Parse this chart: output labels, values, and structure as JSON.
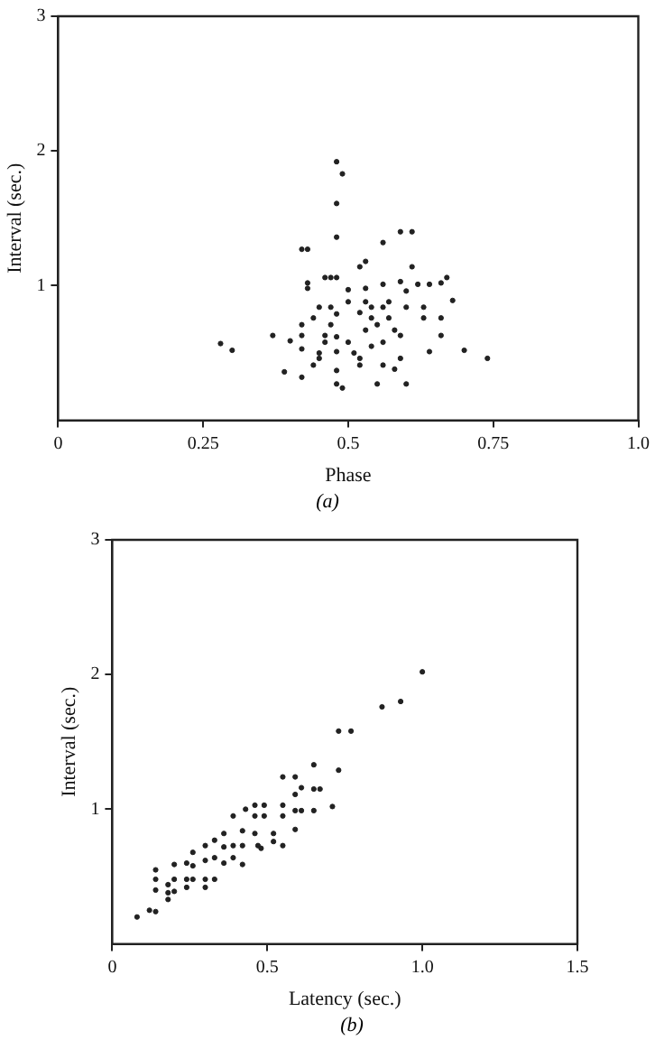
{
  "chart_data": [
    {
      "type": "scatter",
      "xlabel": "Phase",
      "ylabel": "Interval (sec.)",
      "annotations": [
        "(a)"
      ],
      "xlim": [
        0,
        1
      ],
      "ylim": [
        0,
        3
      ],
      "xticks": [
        0,
        {
          "value": 0.25,
          "label": "0.25"
        },
        {
          "value": 0.5,
          "label": "0.5"
        },
        {
          "value": 0.75,
          "label": "0.75"
        },
        {
          "value": 1,
          "label": "1.0"
        }
      ],
      "yticks": [
        1,
        2,
        3
      ],
      "grid": false,
      "legend": false,
      "marker": "circle",
      "series": [
        {
          "color": "#222222",
          "x": [
            0.28,
            0.3,
            0.37,
            0.39,
            0.4,
            0.42,
            0.42,
            0.42,
            0.42,
            0.42,
            0.43,
            0.43,
            0.43,
            0.44,
            0.44,
            0.45,
            0.45,
            0.45,
            0.46,
            0.46,
            0.46,
            0.47,
            0.47,
            0.47,
            0.48,
            0.49,
            0.48,
            0.48,
            0.48,
            0.48,
            0.48,
            0.48,
            0.48,
            0.48,
            0.49,
            0.5,
            0.5,
            0.5,
            0.51,
            0.52,
            0.52,
            0.53,
            0.53,
            0.53,
            0.53,
            0.52,
            0.52,
            0.54,
            0.54,
            0.54,
            0.55,
            0.55,
            0.56,
            0.56,
            0.56,
            0.56,
            0.56,
            0.57,
            0.57,
            0.58,
            0.58,
            0.59,
            0.59,
            0.59,
            0.59,
            0.6,
            0.6,
            0.6,
            0.61,
            0.61,
            0.62,
            0.63,
            0.63,
            0.64,
            0.64,
            0.66,
            0.67,
            0.66,
            0.66,
            0.68,
            0.7,
            0.74
          ],
          "values": [
            0.57,
            0.52,
            0.63,
            0.36,
            0.59,
            0.71,
            0.63,
            0.53,
            0.32,
            1.27,
            1.27,
            1.02,
            0.98,
            0.76,
            0.41,
            0.84,
            0.5,
            0.46,
            1.06,
            0.63,
            0.58,
            1.06,
            0.84,
            0.71,
            1.92,
            1.83,
            1.61,
            1.36,
            1.06,
            0.79,
            0.62,
            0.51,
            0.37,
            0.27,
            0.24,
            0.97,
            0.88,
            0.58,
            0.5,
            0.8,
            1.14,
            1.18,
            0.98,
            0.88,
            0.67,
            0.46,
            0.41,
            0.84,
            0.76,
            0.55,
            0.71,
            0.27,
            1.32,
            1.01,
            0.84,
            0.58,
            0.41,
            0.76,
            0.88,
            0.38,
            0.67,
            1.4,
            1.03,
            0.63,
            0.46,
            0.84,
            0.27,
            0.96,
            1.4,
            1.14,
            1.01,
            0.84,
            0.76,
            0.51,
            1.01,
            1.02,
            1.06,
            0.76,
            0.63,
            0.89,
            0.52,
            0.46
          ]
        }
      ]
    },
    {
      "type": "scatter",
      "xlabel": "Latency (sec.)",
      "ylabel": "Interval (sec.)",
      "annotations": [
        "(b)"
      ],
      "xlim": [
        0,
        1.5
      ],
      "ylim": [
        0,
        3
      ],
      "xticks": [
        0,
        {
          "value": 0.5,
          "label": "0.5"
        },
        {
          "value": 1,
          "label": "1.0"
        },
        {
          "value": 1.5,
          "label": "1.5"
        }
      ],
      "yticks": [
        1,
        2,
        3
      ],
      "grid": false,
      "legend": false,
      "marker": "circle",
      "series": [
        {
          "color": "#222222",
          "x": [
            0.08,
            0.12,
            0.14,
            0.14,
            0.14,
            0.14,
            0.18,
            0.18,
            0.18,
            0.2,
            0.2,
            0.2,
            0.24,
            0.24,
            0.24,
            0.26,
            0.26,
            0.26,
            0.3,
            0.3,
            0.3,
            0.3,
            0.33,
            0.33,
            0.33,
            0.36,
            0.36,
            0.36,
            0.39,
            0.39,
            0.39,
            0.43,
            0.42,
            0.42,
            0.42,
            0.46,
            0.46,
            0.46,
            0.47,
            0.49,
            0.49,
            0.48,
            0.52,
            0.52,
            0.55,
            0.55,
            0.55,
            0.55,
            0.59,
            0.59,
            0.59,
            0.59,
            0.61,
            0.61,
            0.65,
            0.65,
            0.65,
            0.67,
            0.71,
            0.73,
            0.73,
            0.77,
            0.87,
            0.93,
            1.0
          ],
          "values": [
            0.2,
            0.25,
            0.24,
            0.4,
            0.48,
            0.55,
            0.44,
            0.38,
            0.33,
            0.59,
            0.48,
            0.39,
            0.6,
            0.48,
            0.42,
            0.68,
            0.58,
            0.48,
            0.73,
            0.62,
            0.48,
            0.42,
            0.77,
            0.64,
            0.48,
            0.82,
            0.72,
            0.6,
            0.95,
            0.73,
            0.64,
            1.0,
            0.84,
            0.73,
            0.59,
            1.03,
            0.95,
            0.82,
            0.73,
            1.03,
            0.95,
            0.71,
            0.82,
            0.76,
            1.24,
            1.03,
            0.95,
            0.73,
            1.24,
            1.11,
            0.99,
            0.85,
            1.16,
            0.99,
            1.33,
            1.15,
            0.99,
            1.15,
            1.02,
            1.58,
            1.29,
            1.58,
            1.76,
            1.8,
            2.02
          ]
        }
      ]
    }
  ]
}
